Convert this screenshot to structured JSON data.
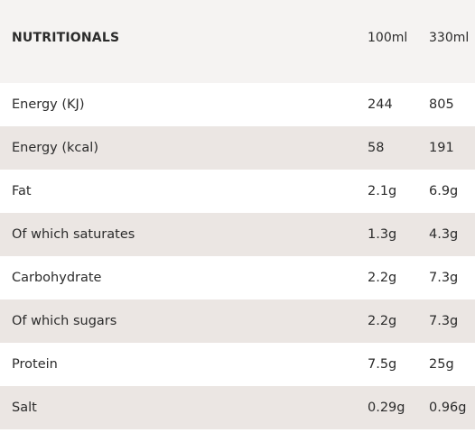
{
  "table": {
    "header": {
      "label": "NUTRITIONALS",
      "col_100": "100ml",
      "col_330": "330ml"
    },
    "rows": [
      {
        "label": "Energy (KJ)",
        "per_100ml": "244",
        "per_330ml": "805"
      },
      {
        "label": "Energy (kcal)",
        "per_100ml": "58",
        "per_330ml": "191"
      },
      {
        "label": "Fat",
        "per_100ml": "2.1g",
        "per_330ml": "6.9g"
      },
      {
        "label": "Of which saturates",
        "per_100ml": "1.3g",
        "per_330ml": "4.3g"
      },
      {
        "label": "Carbohydrate",
        "per_100ml": "2.2g",
        "per_330ml": "7.3g"
      },
      {
        "label": "Of which sugars",
        "per_100ml": "2.2g",
        "per_330ml": "7.3g"
      },
      {
        "label": "Protein",
        "per_100ml": "7.5g",
        "per_330ml": "25g"
      },
      {
        "label": "Salt",
        "per_100ml": "0.29g",
        "per_330ml": "0.96g"
      }
    ]
  },
  "colors": {
    "header_bg": "#f5f3f2",
    "row_alt_bg": "#ebe6e3",
    "text": "#2b2b2b"
  }
}
